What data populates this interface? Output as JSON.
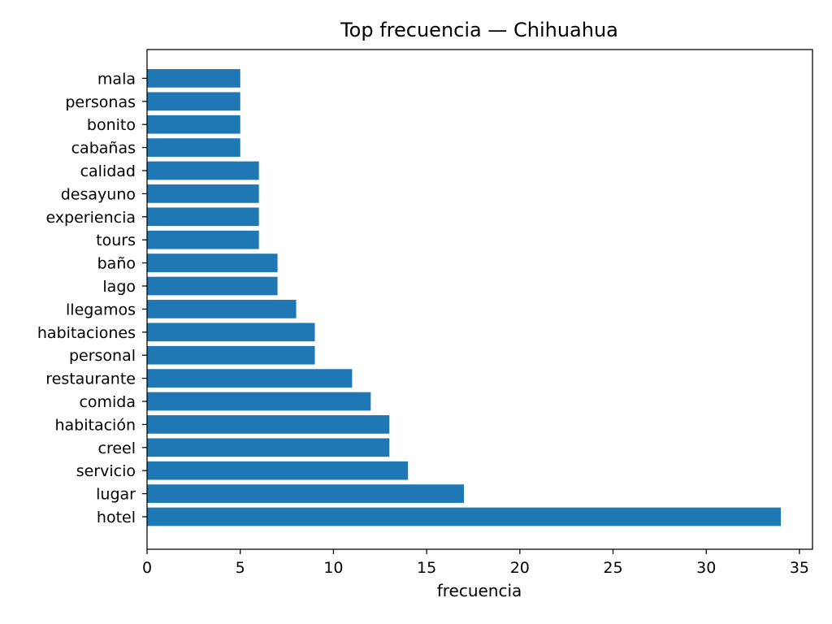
{
  "chart_data": {
    "type": "bar",
    "orientation": "horizontal",
    "title": "Top frecuencia — Chihuahua",
    "xlabel": "frecuencia",
    "ylabel": "",
    "xlim": [
      0,
      35.7
    ],
    "xticks": [
      0,
      5,
      10,
      15,
      20,
      25,
      30,
      35
    ],
    "grid": false,
    "legend": "none",
    "bar_color": "#1f77b4",
    "categories": [
      "hotel",
      "lugar",
      "servicio",
      "creel",
      "habitación",
      "comida",
      "restaurante",
      "personal",
      "habitaciones",
      "llegamos",
      "lago",
      "baño",
      "tours",
      "experiencia",
      "desayuno",
      "calidad",
      "cabañas",
      "bonito",
      "personas",
      "mala"
    ],
    "values": [
      34,
      17,
      14,
      13,
      13,
      12,
      11,
      9,
      9,
      8,
      7,
      7,
      6,
      6,
      6,
      6,
      5,
      5,
      5,
      5
    ]
  }
}
